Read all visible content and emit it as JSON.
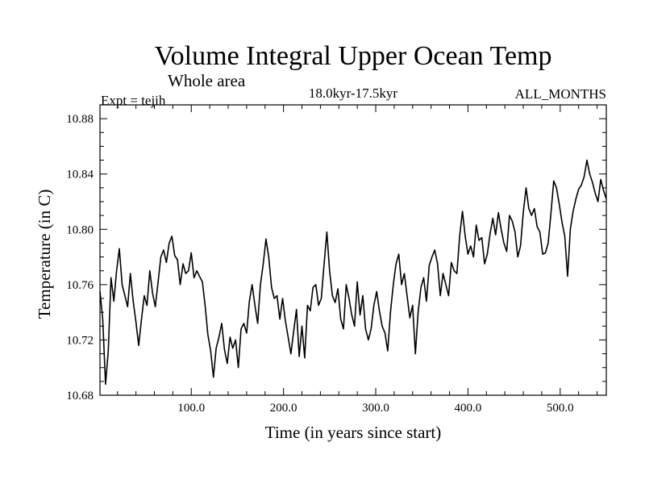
{
  "chart_data": {
    "type": "line",
    "title": "Volume Integral Upper Ocean Temp",
    "subtitle": "Whole area",
    "experiment_label": "Expt = tejih",
    "period_label": "18.0kyr-17.5kyr",
    "months_label": "ALL_MONTHS",
    "xlabel": "Time (in years since start)",
    "ylabel": "Temperature (in C)",
    "xlim": [
      1,
      550
    ],
    "ylim": [
      10.68,
      10.89
    ],
    "x_ticks": [
      100,
      200,
      300,
      400,
      500
    ],
    "x_tick_labels": [
      "100.0",
      "200.0",
      "300.0",
      "400.0",
      "500.0"
    ],
    "y_ticks": [
      10.68,
      10.72,
      10.76,
      10.8,
      10.84,
      10.88
    ],
    "y_tick_labels": [
      "10.68",
      "10.72",
      "10.76",
      "10.80",
      "10.84",
      "10.88"
    ],
    "grid": false,
    "series": [
      {
        "name": "Volume integral upper ocean temperature",
        "color": "#000000",
        "x": [
          1,
          4,
          7,
          10,
          13,
          16,
          19,
          22,
          25,
          28,
          31,
          34,
          37,
          40,
          43,
          46,
          49,
          52,
          55,
          58,
          61,
          64,
          67,
          70,
          73,
          76,
          79,
          82,
          85,
          88,
          91,
          94,
          97,
          100,
          103,
          106,
          109,
          112,
          115,
          118,
          121,
          124,
          127,
          130,
          133,
          136,
          139,
          142,
          145,
          148,
          151,
          154,
          157,
          160,
          163,
          166,
          169,
          172,
          175,
          178,
          181,
          184,
          187,
          190,
          193,
          196,
          199,
          202,
          205,
          208,
          211,
          214,
          217,
          220,
          223,
          226,
          229,
          232,
          235,
          238,
          241,
          244,
          247,
          250,
          253,
          256,
          259,
          262,
          265,
          268,
          271,
          274,
          277,
          280,
          283,
          286,
          289,
          292,
          295,
          298,
          301,
          304,
          307,
          310,
          313,
          316,
          319,
          322,
          325,
          328,
          331,
          334,
          337,
          340,
          343,
          346,
          349,
          352,
          355,
          358,
          361,
          364,
          367,
          370,
          373,
          376,
          379,
          382,
          385,
          388,
          391,
          394,
          397,
          400,
          403,
          406,
          409,
          412,
          415,
          418,
          421,
          424,
          427,
          430,
          433,
          436,
          439,
          442,
          445,
          448,
          451,
          454,
          457,
          460,
          463,
          466,
          469,
          472,
          475,
          478,
          481,
          484,
          487,
          490,
          493,
          496,
          499,
          502,
          505,
          508,
          511,
          514,
          517,
          520,
          523,
          526,
          529,
          532,
          535,
          538,
          541,
          544,
          547,
          550
        ],
        "values": [
          10.755,
          10.735,
          10.688,
          10.712,
          10.765,
          10.748,
          10.77,
          10.786,
          10.76,
          10.752,
          10.744,
          10.768,
          10.748,
          10.733,
          10.716,
          10.735,
          10.752,
          10.745,
          10.77,
          10.754,
          10.744,
          10.762,
          10.78,
          10.785,
          10.776,
          10.79,
          10.795,
          10.781,
          10.778,
          10.76,
          10.775,
          10.768,
          10.77,
          10.783,
          10.765,
          10.77,
          10.766,
          10.762,
          10.745,
          10.724,
          10.712,
          10.693,
          10.714,
          10.722,
          10.732,
          10.713,
          10.703,
          10.722,
          10.714,
          10.72,
          10.7,
          10.728,
          10.732,
          10.725,
          10.748,
          10.76,
          10.745,
          10.732,
          10.76,
          10.775,
          10.793,
          10.78,
          10.758,
          10.75,
          10.752,
          10.735,
          10.75,
          10.734,
          10.722,
          10.71,
          10.726,
          10.742,
          10.708,
          10.73,
          10.707,
          10.745,
          10.741,
          10.758,
          10.76,
          10.745,
          10.75,
          10.775,
          10.798,
          10.77,
          10.752,
          10.747,
          10.757,
          10.735,
          10.728,
          10.76,
          10.75,
          10.738,
          10.73,
          10.762,
          10.738,
          10.752,
          10.728,
          10.72,
          10.728,
          10.745,
          10.755,
          10.741,
          10.73,
          10.725,
          10.712,
          10.74,
          10.76,
          10.775,
          10.782,
          10.76,
          10.768,
          10.752,
          10.736,
          10.745,
          10.71,
          10.74,
          10.758,
          10.765,
          10.748,
          10.774,
          10.78,
          10.785,
          10.775,
          10.752,
          10.768,
          10.76,
          10.752,
          10.776,
          10.77,
          10.768,
          10.795,
          10.813,
          10.795,
          10.782,
          10.788,
          10.78,
          10.803,
          10.792,
          10.794,
          10.775,
          10.782,
          10.797,
          10.808,
          10.796,
          10.812,
          10.8,
          10.79,
          10.784,
          10.81,
          10.806,
          10.798,
          10.78,
          10.788,
          10.812,
          10.83,
          10.815,
          10.81,
          10.815,
          10.802,
          10.798,
          10.782,
          10.783,
          10.79,
          10.812,
          10.835,
          10.83,
          10.818,
          10.805,
          10.795,
          10.766,
          10.8,
          10.813,
          10.822,
          10.829,
          10.832,
          10.838,
          10.85,
          10.84,
          10.834,
          10.826,
          10.82,
          10.836,
          10.828,
          10.822
        ]
      }
    ]
  }
}
